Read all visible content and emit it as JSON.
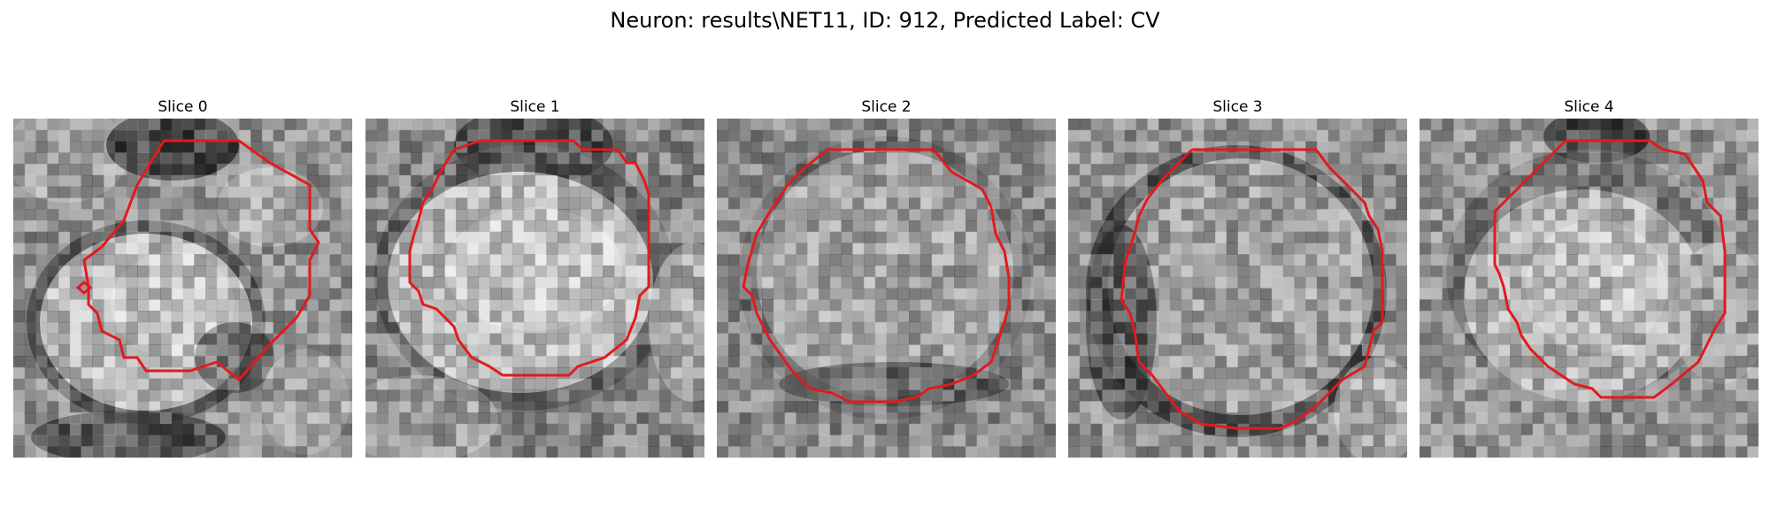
{
  "figure": {
    "title": "Neuron: results\\NET11, ID: 912, Predicted Label: CV"
  },
  "contour_color": "#e31a1c",
  "panels": [
    {
      "label": "Slice 0"
    },
    {
      "label": "Slice 1"
    },
    {
      "label": "Slice 2"
    },
    {
      "label": "Slice 3"
    },
    {
      "label": "Slice 4"
    }
  ]
}
